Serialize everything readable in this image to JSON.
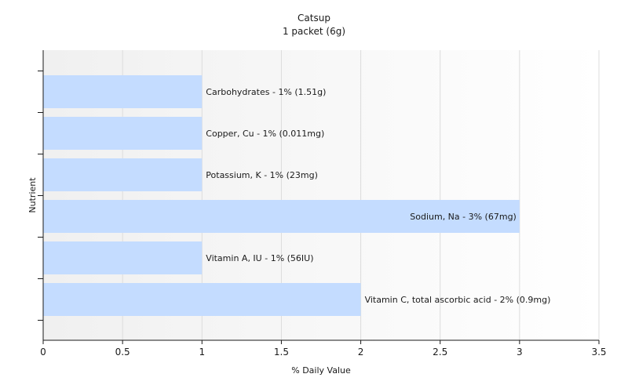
{
  "chart_data": {
    "type": "bar",
    "orientation": "horizontal",
    "title": "Catsup",
    "subtitle": "1 packet (6g)",
    "xlabel": "% Daily Value",
    "ylabel": "Nutrient",
    "xlim": [
      0,
      3.5
    ],
    "xticks": [
      0,
      0.5,
      1,
      1.5,
      2,
      2.5,
      3,
      3.5
    ],
    "grid": true,
    "colors": {
      "bar": "#c4dcff",
      "axis": "#1a1a1a",
      "grid": "#dcdcdc"
    },
    "bars": [
      {
        "category": "Carbohydrates",
        "value": 1,
        "label": "Carbohydrates - 1% (1.51g)"
      },
      {
        "category": "Copper, Cu",
        "value": 1,
        "label": "Copper, Cu - 1% (0.011mg)"
      },
      {
        "category": "Potassium, K",
        "value": 1,
        "label": "Potassium, K - 1% (23mg)"
      },
      {
        "category": "Sodium, Na",
        "value": 3,
        "label": "Sodium, Na - 3% (67mg)"
      },
      {
        "category": "Vitamin A, IU",
        "value": 1,
        "label": "Vitamin A, IU - 1% (56IU)"
      },
      {
        "category": "Vitamin C, total ascorbic acid",
        "value": 2,
        "label": "Vitamin C, total ascorbic acid - 2% (0.9mg)"
      }
    ]
  }
}
